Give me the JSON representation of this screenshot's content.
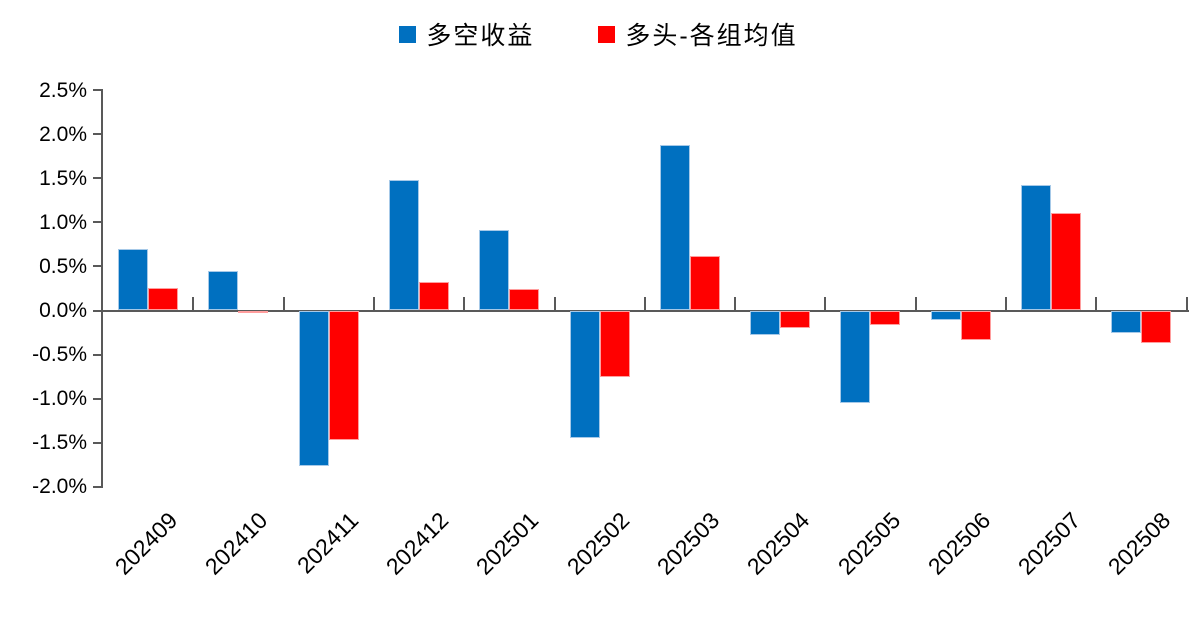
{
  "legend": [
    {
      "label": "多空收益",
      "color": "#0070C0"
    },
    {
      "label": "多头-各组均值",
      "color": "#FF0000"
    }
  ],
  "colors": {
    "series_blue": "#0070C0",
    "series_red": "#FF0000",
    "axis": "#595959",
    "background": "#FFFFFF"
  },
  "chart_data": {
    "type": "bar",
    "title": "",
    "xlabel": "",
    "ylabel": "",
    "unit": "percent",
    "categories": [
      "202409",
      "202410",
      "202411",
      "202412",
      "202501",
      "202502",
      "202503",
      "202504",
      "202505",
      "202506",
      "202507",
      "202508"
    ],
    "series": [
      {
        "name": "多空收益",
        "color": "#0070C0",
        "values": [
          0.7,
          0.45,
          -1.76,
          1.48,
          0.91,
          -1.45,
          1.88,
          -0.28,
          -1.05,
          -0.11,
          1.42,
          -0.25
        ]
      },
      {
        "name": "多头-各组均值",
        "color": "#FF0000",
        "values": [
          0.26,
          -0.03,
          -1.47,
          0.32,
          0.24,
          -0.75,
          0.62,
          -0.2,
          -0.16,
          -0.33,
          1.11,
          -0.37
        ]
      }
    ],
    "ylim": [
      -2.0,
      2.5
    ],
    "ytick_step": 0.5,
    "ytick_labels": [
      "2.5%",
      "2.0%",
      "1.5%",
      "1.0%",
      "0.5%",
      "0.0%",
      "-0.5%",
      "-1.0%",
      "-1.5%",
      "-2.0%"
    ],
    "grid": false,
    "legend_position": "top-center",
    "bar_orientation": "vertical"
  }
}
